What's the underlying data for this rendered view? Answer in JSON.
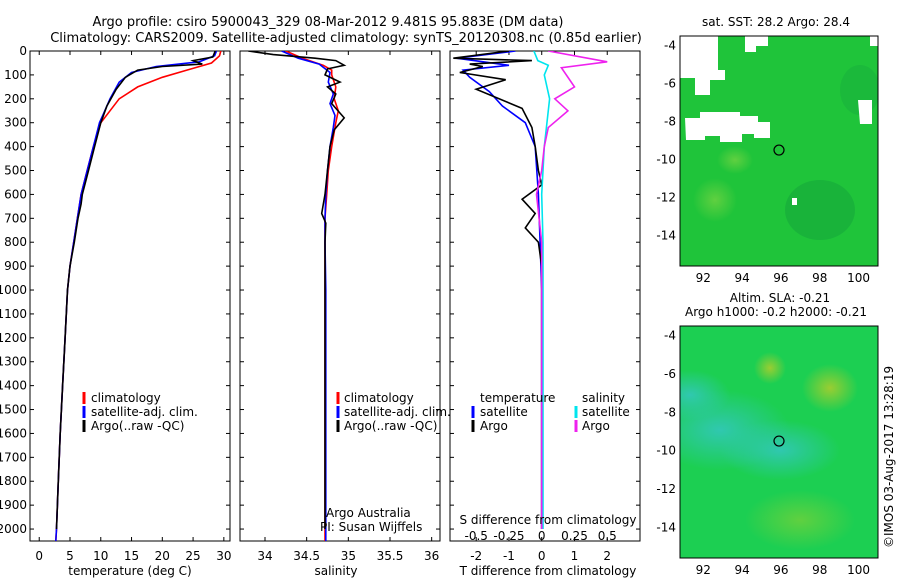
{
  "header": {
    "line1": "Argo profile: csiro 5900043_329 08-Mar-2012 9.481S 95.883E (DM data)",
    "line2": "Climatology: CARS2009. Satellite-adjusted climatology: synTS_20120308.nc (0.85d earlier)"
  },
  "colors": {
    "clim": "#ff0000",
    "sat": "#0000ff",
    "argo": "#000000",
    "sat_s": "#00e5ee",
    "argo_s": "#ee22ee"
  },
  "chart_data": [
    {
      "type": "line",
      "id": "temperature",
      "xlabel": "temperature (deg C)",
      "ylim": [
        2050,
        0
      ],
      "xlim": [
        -1.5,
        31
      ],
      "xticks": [
        0,
        5,
        10,
        15,
        20,
        25,
        30
      ],
      "yticks": [
        0,
        100,
        200,
        300,
        400,
        500,
        600,
        700,
        800,
        900,
        1000,
        1100,
        1200,
        1300,
        1400,
        1500,
        1600,
        1700,
        1800,
        1900,
        2000
      ],
      "legend": [
        "climatology",
        "satellite-adj. clim.",
        "Argo(..raw -QC)"
      ],
      "series": [
        {
          "name": "climatology",
          "color": "clim",
          "points": [
            [
              29.5,
              0
            ],
            [
              29.3,
              20
            ],
            [
              28,
              50
            ],
            [
              24,
              80
            ],
            [
              20,
              110
            ],
            [
              16,
              150
            ],
            [
              13,
              200
            ],
            [
              11.5,
              250
            ],
            [
              10,
              300
            ],
            [
              8.8,
              400
            ],
            [
              7.8,
              500
            ],
            [
              6.8,
              600
            ],
            [
              6.2,
              700
            ],
            [
              5.6,
              800
            ],
            [
              5.0,
              900
            ],
            [
              4.6,
              1000
            ],
            [
              4.2,
              1200
            ],
            [
              3.8,
              1400
            ],
            [
              3.4,
              1600
            ],
            [
              3.1,
              1800
            ],
            [
              2.8,
              2000
            ],
            [
              2.7,
              2050
            ]
          ]
        },
        {
          "name": "satellite-adj. clim.",
          "color": "sat",
          "points": [
            [
              28.8,
              0
            ],
            [
              28.5,
              20
            ],
            [
              26,
              45
            ],
            [
              19,
              65
            ],
            [
              15,
              90
            ],
            [
              13,
              130
            ],
            [
              11.5,
              200
            ],
            [
              10.5,
              260
            ],
            [
              9.8,
              300
            ],
            [
              8.8,
              400
            ],
            [
              7.8,
              500
            ],
            [
              6.8,
              600
            ],
            [
              6.2,
              700
            ],
            [
              5.6,
              800
            ],
            [
              5.0,
              900
            ],
            [
              4.6,
              1000
            ],
            [
              4.2,
              1200
            ],
            [
              3.8,
              1400
            ],
            [
              3.4,
              1600
            ],
            [
              3.1,
              1800
            ],
            [
              2.8,
              2000
            ],
            [
              2.7,
              2050
            ]
          ]
        },
        {
          "name": "Argo(..raw -QC)",
          "color": "argo",
          "points": [
            [
              28.6,
              0
            ],
            [
              28.2,
              25
            ],
            [
              25,
              40
            ],
            [
              26.5,
              55
            ],
            [
              20,
              65
            ],
            [
              16,
              80
            ],
            [
              14,
              110
            ],
            [
              12.5,
              160
            ],
            [
              11,
              230
            ],
            [
              10,
              300
            ],
            [
              9,
              400
            ],
            [
              8,
              500
            ],
            [
              7,
              600
            ],
            [
              6.8,
              640
            ],
            [
              6.3,
              700
            ],
            [
              5.7,
              800
            ],
            [
              5.0,
              900
            ],
            [
              4.6,
              1000
            ],
            [
              4.2,
              1200
            ],
            [
              3.8,
              1400
            ],
            [
              3.4,
              1600
            ],
            [
              3.1,
              1800
            ],
            [
              2.8,
              2000
            ]
          ]
        }
      ]
    },
    {
      "type": "line",
      "id": "salinity",
      "xlabel": "salinity",
      "ylim": [
        2050,
        0
      ],
      "xlim": [
        33.7,
        36.1
      ],
      "xticks": [
        34,
        34.5,
        35,
        35.5,
        36
      ],
      "legend": [
        "climatology",
        "satellite-adj. clim.",
        "Argo(..raw -QC)"
      ],
      "annotation": [
        "Argo Australia",
        "PI: Susan Wijffels"
      ],
      "series": [
        {
          "name": "climatology",
          "color": "clim",
          "points": [
            [
              34.25,
              0
            ],
            [
              34.45,
              30
            ],
            [
              34.7,
              60
            ],
            [
              34.8,
              80
            ],
            [
              34.8,
              100
            ],
            [
              34.85,
              150
            ],
            [
              34.83,
              200
            ],
            [
              34.88,
              250
            ],
            [
              34.85,
              300
            ],
            [
              34.8,
              400
            ],
            [
              34.76,
              500
            ],
            [
              34.74,
              600
            ],
            [
              34.72,
              700
            ],
            [
              34.72,
              800
            ],
            [
              34.72,
              1000
            ],
            [
              34.72,
              1500
            ],
            [
              34.72,
              2000
            ],
            [
              34.72,
              2050
            ]
          ]
        },
        {
          "name": "satellite-adj. clim.",
          "color": "sat",
          "points": [
            [
              34.2,
              0
            ],
            [
              34.4,
              30
            ],
            [
              34.65,
              55
            ],
            [
              34.78,
              90
            ],
            [
              34.76,
              130
            ],
            [
              34.82,
              180
            ],
            [
              34.78,
              220
            ],
            [
              34.84,
              270
            ],
            [
              34.82,
              320
            ],
            [
              34.78,
              400
            ],
            [
              34.75,
              500
            ],
            [
              34.73,
              600
            ],
            [
              34.72,
              700
            ],
            [
              34.72,
              800
            ],
            [
              34.73,
              1000
            ],
            [
              34.73,
              1500
            ],
            [
              34.73,
              2000
            ],
            [
              34.73,
              2050
            ]
          ]
        },
        {
          "name": "Argo(..raw -QC)",
          "color": "argo",
          "points": [
            [
              33.8,
              0
            ],
            [
              34.1,
              15
            ],
            [
              34.6,
              30
            ],
            [
              34.85,
              40
            ],
            [
              34.95,
              60
            ],
            [
              34.75,
              75
            ],
            [
              34.72,
              100
            ],
            [
              34.9,
              130
            ],
            [
              34.75,
              150
            ],
            [
              34.85,
              180
            ],
            [
              34.8,
              220
            ],
            [
              34.95,
              280
            ],
            [
              34.83,
              330
            ],
            [
              34.78,
              400
            ],
            [
              34.75,
              500
            ],
            [
              34.72,
              600
            ],
            [
              34.68,
              680
            ],
            [
              34.73,
              720
            ],
            [
              34.72,
              800
            ],
            [
              34.72,
              1000
            ],
            [
              34.72,
              1500
            ],
            [
              34.72,
              2000
            ]
          ]
        }
      ]
    },
    {
      "type": "line",
      "id": "differences",
      "xlabel": "T difference from climatology",
      "xlabel_top": "S difference from climatology",
      "ylim": [
        2050,
        0
      ],
      "xlim": [
        -2.8,
        3.0
      ],
      "xticks": [
        -2,
        -1,
        0,
        1,
        2
      ],
      "s_xticks": [
        -0.5,
        -0.25,
        0,
        0.25,
        0.5
      ],
      "legend_left": {
        "title": "temperature",
        "items": [
          "satellite",
          "Argo"
        ]
      },
      "legend_right": {
        "title": "salinity",
        "items": [
          "satellite",
          "Argo"
        ]
      },
      "series": [
        {
          "name": "temperature satellite",
          "color": "sat",
          "points": [
            [
              -0.8,
              0
            ],
            [
              -2.6,
              30
            ],
            [
              -1.0,
              60
            ],
            [
              -2.4,
              80
            ],
            [
              -2.2,
              110
            ],
            [
              -1.6,
              170
            ],
            [
              -1.2,
              230
            ],
            [
              -0.5,
              300
            ],
            [
              -0.2,
              400
            ],
            [
              -0.15,
              500
            ],
            [
              -0.1,
              600
            ],
            [
              -0.05,
              800
            ],
            [
              0,
              1000
            ],
            [
              0,
              1500
            ],
            [
              0,
              2000
            ]
          ]
        },
        {
          "name": "temperature Argo",
          "color": "argo",
          "points": [
            [
              -1.0,
              0
            ],
            [
              -2.7,
              30
            ],
            [
              -0.3,
              40
            ],
            [
              -2.2,
              55
            ],
            [
              -1.8,
              65
            ],
            [
              -2.5,
              90
            ],
            [
              -1.1,
              120
            ],
            [
              -2.0,
              160
            ],
            [
              -0.6,
              240
            ],
            [
              -0.3,
              320
            ],
            [
              -0.2,
              400
            ],
            [
              -0.1,
              500
            ],
            [
              0,
              560
            ],
            [
              -0.6,
              620
            ],
            [
              -0.2,
              680
            ],
            [
              -0.5,
              740
            ],
            [
              -0.1,
              800
            ],
            [
              0,
              900
            ],
            [
              0,
              1500
            ],
            [
              0,
              2000
            ]
          ]
        },
        {
          "name": "salinity satellite",
          "color": "sat_s",
          "points": [
            [
              -0.06,
              0
            ],
            [
              -0.03,
              40
            ],
            [
              0.05,
              60
            ],
            [
              0.02,
              100
            ],
            [
              0.06,
              200
            ],
            [
              0.02,
              400
            ],
            [
              0,
              600
            ],
            [
              0.01,
              800
            ],
            [
              0.01,
              1000
            ],
            [
              0.01,
              1500
            ],
            [
              0.01,
              2000
            ]
          ]
        },
        {
          "name": "salinity Argo",
          "color": "argo_s",
          "points": [
            [
              0.05,
              0
            ],
            [
              0.5,
              45
            ],
            [
              0.15,
              70
            ],
            [
              0.25,
              150
            ],
            [
              0.1,
              200
            ],
            [
              0.2,
              250
            ],
            [
              0.05,
              320
            ],
            [
              0.02,
              400
            ],
            [
              0,
              500
            ],
            [
              -0.04,
              600
            ],
            [
              -0.02,
              700
            ],
            [
              0,
              800
            ],
            [
              0,
              1000
            ],
            [
              0,
              1500
            ],
            [
              0,
              2000
            ]
          ]
        }
      ]
    },
    {
      "type": "heatmap",
      "id": "sst-map",
      "title": "sat. SST: 28.2 Argo: 28.4",
      "xlim": [
        90.8,
        101
      ],
      "ylim": [
        -15.6,
        -3.5
      ],
      "xticks": [
        92,
        94,
        96,
        98,
        100
      ],
      "yticks": [
        -4,
        -6,
        -8,
        -10,
        -12,
        -14
      ],
      "marker": [
        95.9,
        -9.5
      ]
    },
    {
      "type": "heatmap",
      "id": "sla-map",
      "title": "Altim. SLA: -0.21",
      "subtitle": "Argo h1000: -0.2 h2000: -0.21",
      "xlim": [
        90.8,
        101
      ],
      "ylim": [
        -15.6,
        -3.5
      ],
      "xticks": [
        92,
        94,
        96,
        98,
        100
      ],
      "yticks": [
        -4,
        -6,
        -8,
        -10,
        -12,
        -14
      ],
      "marker": [
        95.9,
        -9.5
      ]
    }
  ],
  "credit": "©IMOS 03-Aug-2017 13:28:19"
}
